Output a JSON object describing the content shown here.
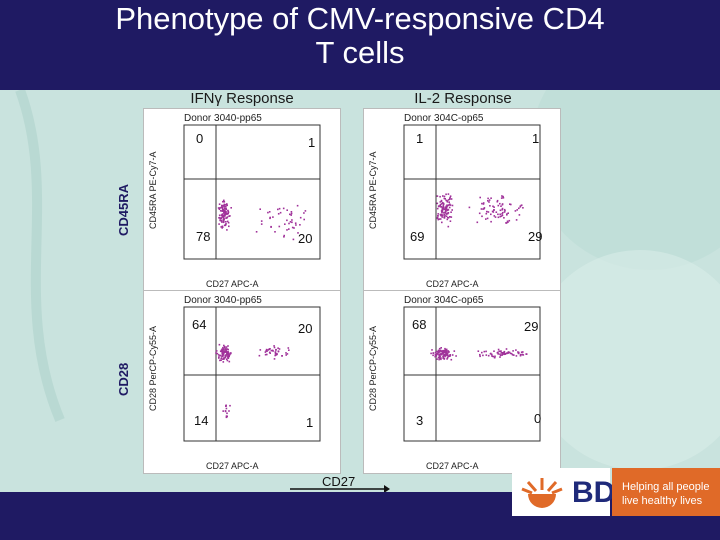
{
  "title": "Phenotype of CMV-responsive CD4\nT cells",
  "columns": [
    "IFNγ Response",
    "IL-2 Response"
  ],
  "rows": [
    "CD45RA",
    "CD28"
  ],
  "bottom_axis": "CD27",
  "plots": [
    {
      "title": "Donor 3040-pp65",
      "ylabel": "CD45RA PE-Cy7-A",
      "xlabel": "CD27 APC-A",
      "quadrants": [
        "0",
        "1",
        "78",
        "20"
      ]
    },
    {
      "title": "Donor 304C-op65",
      "ylabel": "CD45RA PE-Cy7-A",
      "xlabel": "CD27 APC-A",
      "quadrants": [
        "1",
        "1",
        "69",
        "29"
      ]
    },
    {
      "title": "Donor 3040-pp65",
      "ylabel": "CD28 PerCP-Cy55-A",
      "xlabel": "CD27 APC-A",
      "quadrants": [
        "64",
        "20",
        "14",
        "1"
      ]
    },
    {
      "title": "Donor 304C-op65",
      "ylabel": "CD28 PerCP-Cy55-A",
      "xlabel": "CD27 APC-A",
      "quadrants": [
        "68",
        "29",
        "3",
        "0"
      ]
    }
  ],
  "logo": {
    "text": "BD",
    "tagline": "Helping all people\nlive healthy lives"
  },
  "colors": {
    "title_bar": "#1f1a63",
    "dots": "#a0329a",
    "tagline_bg": "#e06a28"
  }
}
